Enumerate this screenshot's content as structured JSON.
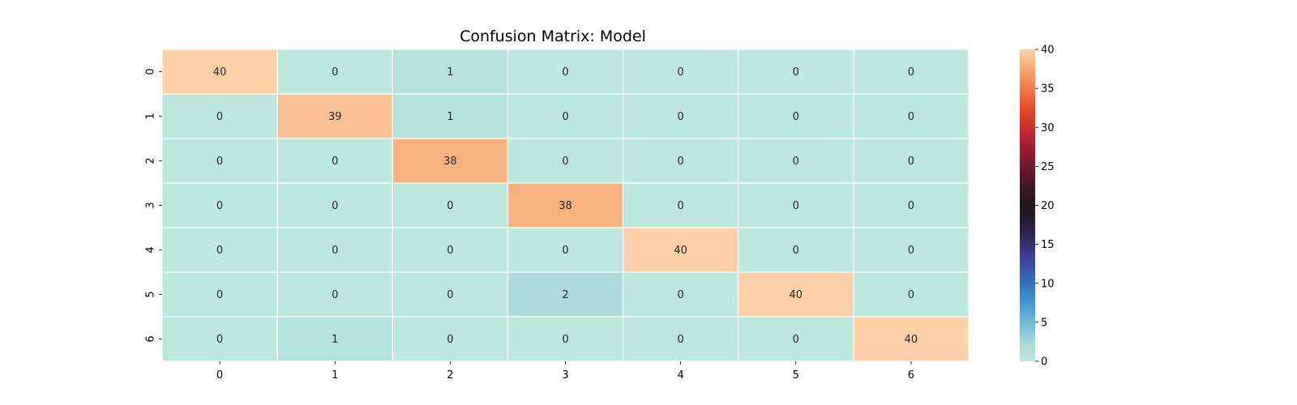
{
  "chart_data": {
    "type": "heatmap",
    "title": "Confusion Matrix: Model",
    "xlabel": "",
    "ylabel": "",
    "x_categories": [
      "0",
      "1",
      "2",
      "3",
      "4",
      "5",
      "6"
    ],
    "y_categories": [
      "0",
      "1",
      "2",
      "3",
      "4",
      "5",
      "6"
    ],
    "values": [
      [
        40,
        0,
        1,
        0,
        0,
        0,
        0
      ],
      [
        0,
        39,
        1,
        0,
        0,
        0,
        0
      ],
      [
        0,
        0,
        38,
        0,
        0,
        0,
        0
      ],
      [
        0,
        0,
        0,
        38,
        0,
        0,
        0
      ],
      [
        0,
        0,
        0,
        0,
        40,
        0,
        0
      ],
      [
        0,
        0,
        0,
        2,
        0,
        40,
        0
      ],
      [
        0,
        1,
        0,
        0,
        0,
        0,
        40
      ]
    ],
    "colorscale": "icefire",
    "vmin": 0,
    "vmax": 40,
    "colorbar_ticks": [
      0,
      5,
      10,
      15,
      20,
      25,
      30,
      35,
      40
    ],
    "annotations_shown": true,
    "grid": false
  }
}
